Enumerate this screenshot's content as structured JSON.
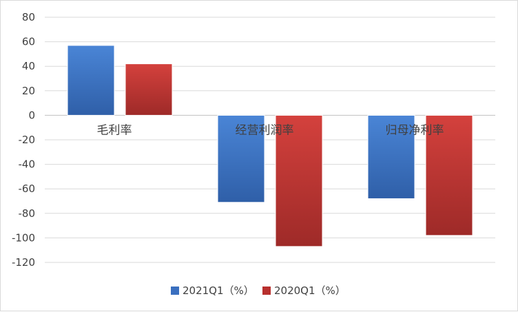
{
  "chart_data": {
    "type": "bar",
    "categories": [
      "毛利率",
      "经营利润率",
      "归母净利率"
    ],
    "series": [
      {
        "name": "2021Q1（%）",
        "values": [
          57,
          -71,
          -68
        ],
        "color": "#3a6fbf"
      },
      {
        "name": "2020Q1（%）",
        "values": [
          42,
          -107,
          -98
        ],
        "color": "#b8302e"
      }
    ],
    "ylim": [
      -120,
      80
    ],
    "yticks": [
      80,
      60,
      40,
      20,
      0,
      -20,
      -40,
      -60,
      -80,
      -100,
      -120
    ],
    "grid": true,
    "legend_position": "bottom"
  }
}
